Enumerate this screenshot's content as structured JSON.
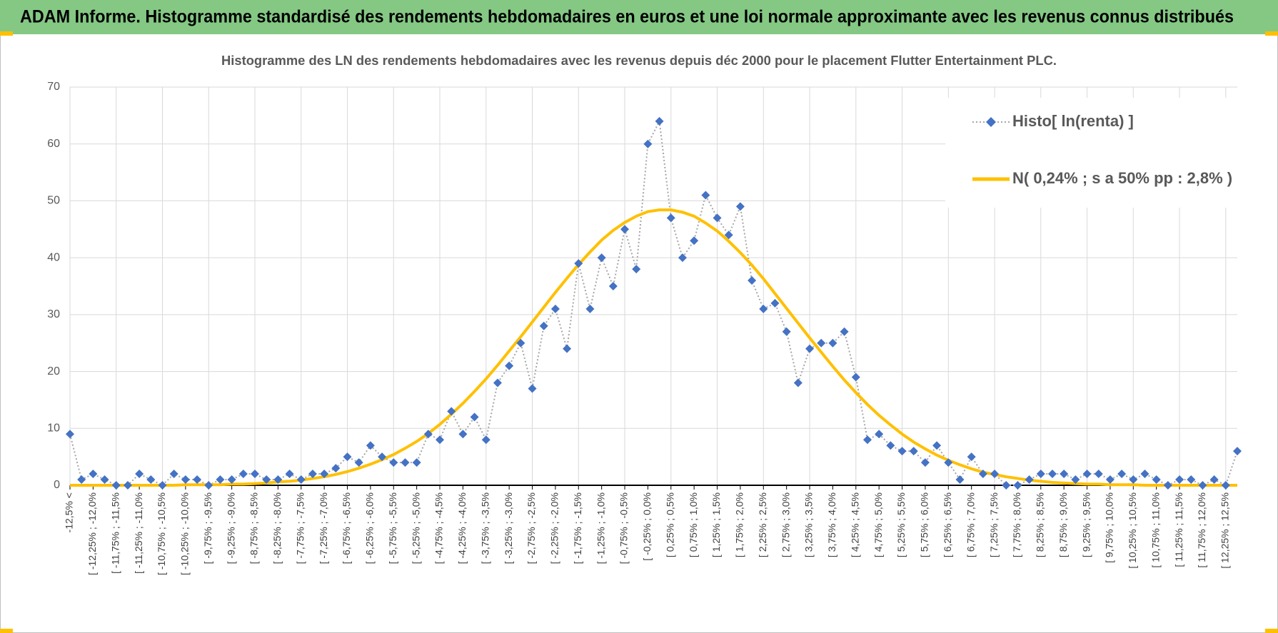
{
  "header": {
    "title": "ADAM Informe. Histogramme standardisé des rendements hebdomadaires en euros et une loi normale approximante avec les revenus connus distribués"
  },
  "chart_data": {
    "type": "line",
    "title": "Histogramme des LN des rendements hebdomadaires avec les revenus depuis déc 2000 pour le placement Flutter Entertainment PLC.",
    "categories": [
      "-12,5% <",
      null,
      "[ -12,25% ; -12,0%",
      null,
      "[ -11,75% ; -11,5%",
      null,
      "[ -11,25% ; -11,0%",
      null,
      "[ -10,75% ; -10,5%",
      null,
      "[ -10,25% ; -10,0%",
      null,
      "[ -9,75% ; -9,5%",
      null,
      "[ -9,25% ; -9,0%",
      null,
      "[ -8,75% ; -8,5%",
      null,
      "[ -8,25% ; -8,0%",
      null,
      "[ -7,75% ; -7,5%",
      null,
      "[ -7,25% ; -7,0%",
      null,
      "[ -6,75% ; -6,5%",
      null,
      "[ -6,25% ; -6,0%",
      null,
      "[ -5,75% ; -5,5%",
      null,
      "[ -5,25% ; -5,0%",
      null,
      "[ -4,75% ; -4,5%",
      null,
      "[ -4,25% ; -4,0%",
      null,
      "[ -3,75% ; -3,5%",
      null,
      "[ -3,25% ; -3,0%",
      null,
      "[ -2,75% ; -2,5%",
      null,
      "[ -2,25% ; -2,0%",
      null,
      "[ -1,75% ; -1,5%",
      null,
      "[ -1,25% ; -1,0%",
      null,
      "[ -0,75% ; -0,5%",
      null,
      "[ -0,25% ; 0,0%",
      null,
      "[ 0,25% ; 0,5%",
      null,
      "[ 0,75% ; 1,0%",
      null,
      "[ 1,25% ; 1,5%",
      null,
      "[ 1,75% ; 2,0%",
      null,
      "[ 2,25% ; 2,5%",
      null,
      "[ 2,75% ; 3,0%",
      null,
      "[ 3,25% ; 3,5%",
      null,
      "[ 3,75% ; 4,0%",
      null,
      "[ 4,25% ; 4,5%",
      null,
      "[ 4,75% ; 5,0%",
      null,
      "[ 5,25% ; 5,5%",
      null,
      "[ 5,75% ; 6,0%",
      null,
      "[ 6,25% ; 6,5%",
      null,
      "[ 6,75% ; 7,0%",
      null,
      "[ 7,25% ; 7,5%",
      null,
      "[ 7,75% ; 8,0%",
      null,
      "[ 8,25% ; 8,5%",
      null,
      "[ 8,75% ; 9,0%",
      null,
      "[ 9,25% ; 9,5%",
      null,
      "[ 9,75% ; 10,0%",
      null,
      "[ 10,25% ; 10,5%",
      null,
      "[ 10,75% ; 11,0%",
      null,
      "[ 11,25% ; 11,5%",
      null,
      "[ 11,75% ; 12,0%",
      null,
      "[ 12,25% ; 12,5%",
      null
    ],
    "series": [
      {
        "name": "Histo[ ln(renta) ]",
        "color": "#4472c4",
        "values": [
          9,
          1,
          2,
          1,
          0,
          0,
          2,
          1,
          0,
          2,
          1,
          1,
          0,
          1,
          1,
          2,
          2,
          1,
          1,
          2,
          1,
          2,
          2,
          3,
          5,
          4,
          7,
          5,
          4,
          4,
          4,
          9,
          8,
          13,
          9,
          12,
          8,
          18,
          21,
          25,
          17,
          28,
          31,
          24,
          39,
          31,
          40,
          35,
          45,
          38,
          60,
          64,
          47,
          40,
          43,
          51,
          47,
          44,
          49,
          36,
          31,
          32,
          27,
          18,
          24,
          25,
          25,
          27,
          19,
          8,
          9,
          7,
          6,
          6,
          4,
          7,
          4,
          1,
          5,
          2,
          2,
          0,
          0,
          1,
          2,
          2,
          2,
          1,
          2,
          2,
          1,
          2,
          1,
          2,
          1,
          0,
          1,
          1,
          0,
          1,
          0,
          6
        ]
      },
      {
        "name": "N( 0,24% ; s a 50% pp : 2,8% )",
        "color": "#ffc000",
        "values": [
          0,
          0,
          0,
          0,
          0,
          0,
          0,
          0,
          0,
          0,
          0.1,
          0.1,
          0.1,
          0.1,
          0.2,
          0.2,
          0.3,
          0.4,
          0.6,
          0.7,
          0.9,
          1.2,
          1.5,
          1.9,
          2.4,
          3.0,
          3.7,
          4.5,
          5.4,
          6.5,
          7.7,
          9.1,
          10.7,
          12.5,
          14.4,
          16.5,
          18.7,
          21.1,
          23.6,
          26.1,
          28.7,
          31.3,
          33.9,
          36.4,
          38.8,
          41.0,
          43.1,
          44.8,
          46.2,
          47.3,
          48.1,
          48.4,
          48.4,
          48.0,
          47.3,
          46.1,
          44.7,
          42.9,
          40.9,
          38.7,
          36.3,
          33.7,
          31.1,
          28.5,
          25.9,
          23.4,
          20.9,
          18.5,
          16.3,
          14.2,
          12.3,
          10.6,
          9.0,
          7.6,
          6.4,
          5.3,
          4.4,
          3.6,
          2.9,
          2.3,
          1.9,
          1.5,
          1.2,
          0.9,
          0.7,
          0.5,
          0.4,
          0.3,
          0.2,
          0.2,
          0.1,
          0.1,
          0.1,
          0,
          0,
          0,
          0,
          0,
          0,
          0,
          0,
          0
        ]
      }
    ],
    "ylim": [
      0,
      70
    ],
    "yticks": [
      0,
      10,
      20,
      30,
      40,
      50,
      60,
      70
    ],
    "grid": true,
    "legend": "upper right"
  }
}
